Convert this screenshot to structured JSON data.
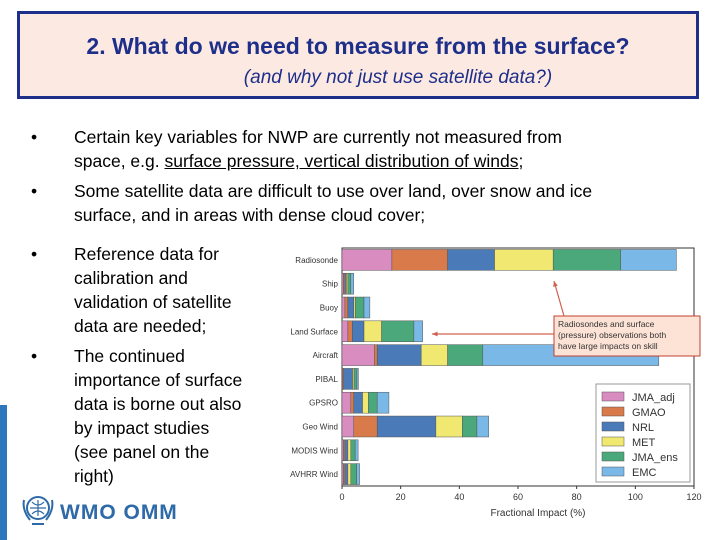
{
  "title": {
    "main": "2. What do we need to measure from the surface?",
    "sub": "(and why not just use satellite data?)"
  },
  "bullets": {
    "b1_line1": "Certain key variables for NWP are currently not measured from",
    "b1_line2_pre": "space, e.g. ",
    "b1_line2_ul": "surface pressure, vertical distribution of winds",
    "b1_line2_post": ";",
    "b2_line1": "Some satellite data are difficult to use over land, over snow and ice",
    "b2_line2": "surface, and in areas with dense cloud cover;",
    "b3_lines": [
      "Reference data for",
      "calibration and",
      "validation of satellite",
      "data are needed;"
    ],
    "b4_lines": [
      "The continued",
      "importance of surface",
      "data is borne out also",
      "by impact studies",
      "(see panel on the",
      "right)"
    ],
    "bullet_char": "•"
  },
  "logo": {
    "text": "WMO OMM"
  },
  "colors": {
    "title_border": "#1e2f8a",
    "title_bg": "#fbe9e2",
    "title_text": "#1e2f8a",
    "logo_blue": "#2e6aa8"
  },
  "chart_data": {
    "type": "bar",
    "orientation": "horizontal-stacked",
    "categories": [
      "Radiosonde",
      "Ship",
      "Buoy",
      "Land Surface",
      "Aircraft",
      "PIBAL",
      "GPSRO",
      "Geo Wind",
      "MODIS Wind",
      "AVHRR Wind"
    ],
    "series": [
      {
        "name": "JMA_adj",
        "color": "#d98cc0",
        "values": [
          17,
          0.5,
          1,
          2,
          11,
          0.3,
          3,
          4,
          0.5,
          0.5
        ]
      },
      {
        "name": "GMAO",
        "color": "#d97a4a",
        "values": [
          19,
          0.5,
          1,
          1.5,
          1,
          0.3,
          1,
          8,
          0.5,
          0.5
        ]
      },
      {
        "name": "NRL",
        "color": "#4a7ab8",
        "values": [
          16,
          0.5,
          2,
          4,
          15,
          3,
          3,
          20,
          1,
          1
        ]
      },
      {
        "name": "MET",
        "color": "#f0e870",
        "values": [
          20,
          0.5,
          0.5,
          6,
          9,
          0.5,
          2,
          9,
          1,
          1
        ]
      },
      {
        "name": "JMA_ens",
        "color": "#4aa87a",
        "values": [
          23,
          1,
          3,
          11,
          12,
          1,
          3,
          5,
          1.5,
          2
        ]
      },
      {
        "name": "EMC",
        "color": "#7ab8e8",
        "values": [
          19,
          1,
          2,
          3,
          60,
          0.5,
          4,
          4,
          1,
          1
        ]
      }
    ],
    "xlabel": "Fractional Impact (%)",
    "xlim": [
      0,
      120
    ],
    "xticks": [
      0,
      20,
      40,
      60,
      80,
      100,
      120
    ],
    "legend_position": "bottom-right",
    "annotation": [
      "Radiosondes and surface",
      "(pressure) observations both",
      "have large impacts on skill"
    ]
  }
}
